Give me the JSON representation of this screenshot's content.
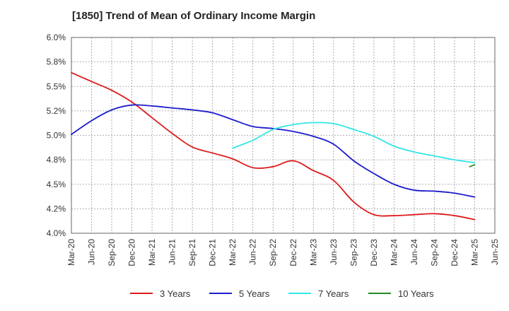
{
  "chart_data": {
    "type": "line",
    "title": "[1850]  Trend of Mean of Ordinary Income Margin",
    "xlabel": "",
    "ylabel": "",
    "ylim": [
      4.0,
      6.0
    ],
    "y_ticks": [
      "4.0%",
      "4.2%",
      "4.5%",
      "4.8%",
      "5.0%",
      "5.2%",
      "5.5%",
      "5.8%",
      "6.0%"
    ],
    "x_ticks": [
      "Mar-20",
      "Jun-20",
      "Sep-20",
      "Dec-20",
      "Mar-21",
      "Jun-21",
      "Sep-21",
      "Dec-21",
      "Mar-22",
      "Jun-22",
      "Sep-22",
      "Dec-22",
      "Mar-23",
      "Jun-23",
      "Sep-23",
      "Dec-23",
      "Mar-24",
      "Jun-24",
      "Sep-24",
      "Dec-24",
      "Mar-25",
      "Jun-25"
    ],
    "x": [
      "Mar-20",
      "Jun-20",
      "Sep-20",
      "Dec-20",
      "Mar-21",
      "Jun-21",
      "Sep-21",
      "Dec-21",
      "Mar-22",
      "Jun-22",
      "Sep-22",
      "Dec-22",
      "Mar-23",
      "Jun-23",
      "Sep-23",
      "Dec-23",
      "Mar-24",
      "Jun-24",
      "Sep-24",
      "Dec-24",
      "Mar-25"
    ],
    "grid": true,
    "legend_position": "bottom",
    "series": [
      {
        "name": "3 Years",
        "color": "#dd1c1c",
        "values": [
          5.64,
          5.55,
          5.46,
          5.34,
          5.18,
          5.02,
          4.88,
          4.82,
          4.76,
          4.67,
          4.68,
          4.74,
          4.64,
          4.54,
          4.32,
          4.19,
          4.18,
          4.19,
          4.2,
          4.18,
          4.14
        ]
      },
      {
        "name": "5 Years",
        "color": "#1c1ccc",
        "values": [
          5.01,
          5.15,
          5.26,
          5.31,
          5.3,
          5.28,
          5.26,
          5.23,
          5.16,
          5.09,
          5.07,
          5.04,
          4.99,
          4.91,
          4.74,
          4.61,
          4.5,
          4.44,
          4.43,
          4.41,
          4.37
        ]
      },
      {
        "name": "7 Years",
        "color": "#33e6e6",
        "values": [
          null,
          null,
          null,
          null,
          null,
          null,
          null,
          null,
          4.87,
          4.95,
          5.06,
          5.11,
          5.13,
          5.12,
          5.06,
          4.99,
          4.89,
          4.83,
          4.79,
          4.75,
          4.72
        ]
      },
      {
        "name": "10 Years",
        "color": "#228b22",
        "values": [
          null,
          null,
          null,
          null,
          null,
          null,
          null,
          null,
          null,
          null,
          null,
          null,
          null,
          null,
          null,
          null,
          null,
          null,
          null,
          null,
          4.7
        ],
        "start_value": 4.68
      }
    ]
  }
}
